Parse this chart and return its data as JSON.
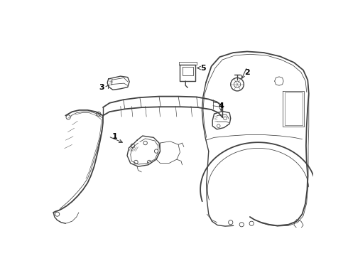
{
  "background_color": "#ffffff",
  "line_color": "#404040",
  "label_color": "#000000",
  "lw_main": 1.0,
  "lw_thin": 0.55,
  "lw_thick": 1.3
}
